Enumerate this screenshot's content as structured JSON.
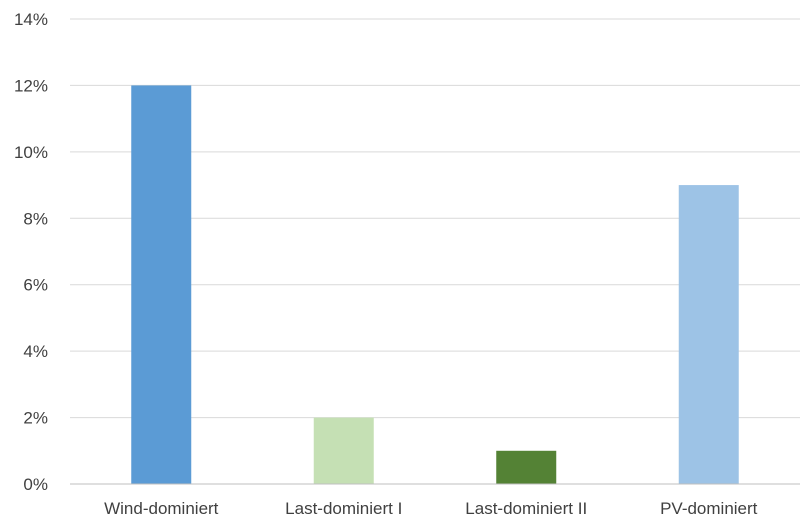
{
  "chart_data": {
    "type": "bar",
    "categories": [
      "Wind-dominiert",
      "Last-dominiert I",
      "Last-dominiert II",
      "PV-dominiert"
    ],
    "values": [
      12,
      2,
      1,
      9
    ],
    "value_unit": "%",
    "ylim": [
      0,
      14
    ],
    "yticks": [
      0,
      2,
      4,
      6,
      8,
      10,
      12,
      14
    ],
    "ytick_labels": [
      "0%",
      "2%",
      "4%",
      "6%",
      "8%",
      "10%",
      "12%",
      "14%"
    ],
    "bar_colors": [
      "#5b9bd5",
      "#c5e0b4",
      "#548235",
      "#9dc3e6"
    ],
    "grid": true,
    "legend": "none",
    "title": "",
    "xlabel": "",
    "ylabel": ""
  }
}
